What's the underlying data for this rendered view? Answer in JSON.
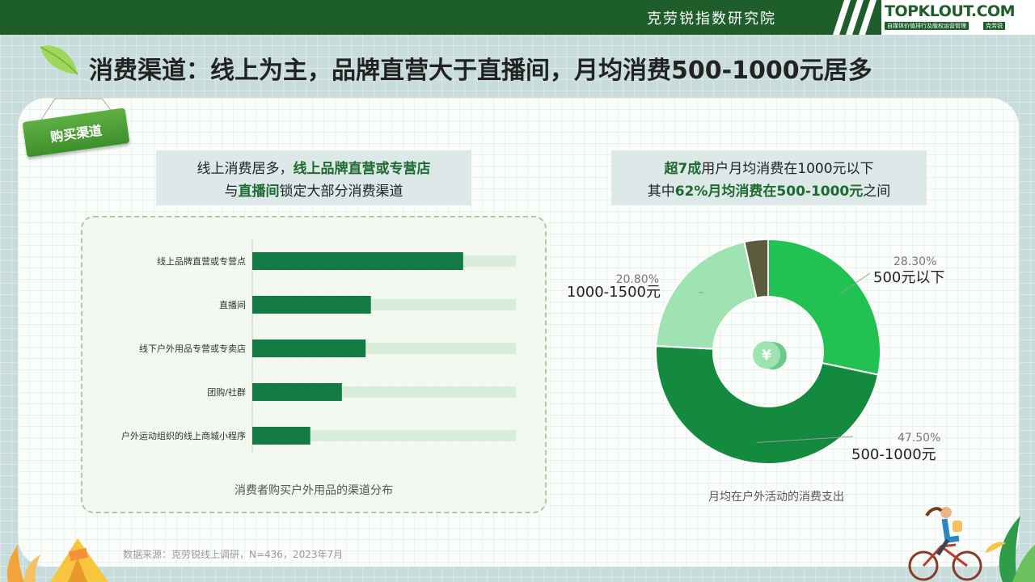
{
  "header": {
    "org_name": "克劳锐指数研究院",
    "logo_text": "TOPKLOUT.COM",
    "logo_sub": "自媒体价值排行及版权运营管理",
    "logo_sub2": "克劳锐"
  },
  "page_title": "消费渠道：线上为主，品牌直营大于直播间，月均消费500-1000元居多",
  "section_tag": "购买渠道",
  "callout_left": {
    "line1_pre": "线上消费居多，",
    "line1_bold": "线上品牌直营或专营店",
    "line2_pre": "与",
    "line2_bold": "直播间",
    "line2_post": "锁定大部分消费渠道"
  },
  "callout_right": {
    "line1_bold": "超7成",
    "line1_post": "用户月均消费在1000元以下",
    "line2_pre": "其中",
    "line2_bold": "62%月均消费在500-1000元",
    "line2_post": "之间"
  },
  "bar_caption": "消费者购买户外用品的渠道分布",
  "pie_caption": "月均在户外活动的消费支出",
  "source": "数据来源：克劳锐线上调研，N=436，2023年7月",
  "chart_data": [
    {
      "type": "bar",
      "orientation": "horizontal",
      "title": "消费者购买户外用品的渠道分布",
      "categories": [
        "线上品牌直营或专营点",
        "直播间",
        "线下户外用品专营或专卖店",
        "团购/社群",
        "户外运动组织的线上商城小程序"
      ],
      "values": [
        80,
        45,
        43,
        34,
        22
      ],
      "xlim": [
        0,
        100
      ],
      "value_labels_shown": false,
      "colors": {
        "bar": "#127a42",
        "track": "#d8eedb"
      }
    },
    {
      "type": "pie",
      "variant": "donut",
      "title": "月均在户外活动的消费支出",
      "slices": [
        {
          "label": "500元以下",
          "value": 28.3,
          "display": "28.30%",
          "color": "#22c252"
        },
        {
          "label": "500-1000元",
          "value": 47.5,
          "display": "47.50%",
          "color": "#138a3e"
        },
        {
          "label": "1000-1500元",
          "value": 20.8,
          "display": "20.80%",
          "color": "#9fe3b2"
        },
        {
          "label": "",
          "value": 3.4,
          "display": "",
          "color": "#5a5a3c"
        }
      ],
      "center_icon": "yuan-coin-icon"
    }
  ]
}
